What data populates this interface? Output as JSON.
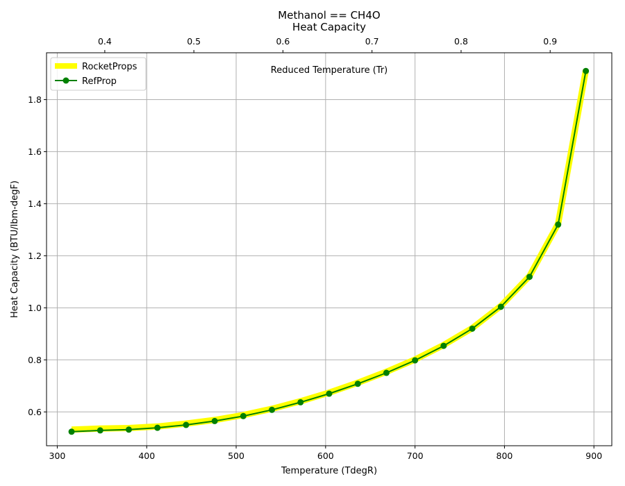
{
  "chart_data": {
    "type": "line",
    "title_line1": "Methanol == CH4O",
    "title_line2": "Heat Capacity",
    "xlabel": "Temperature (TdegR)",
    "ylabel": "Heat Capacity (BTU/lbm-degF)",
    "top_xlabel": "Reduced Temperature (Tr)",
    "xlim": [
      288,
      920
    ],
    "ylim": [
      0.47,
      1.98
    ],
    "top_xlim": [
      0.3346,
      0.9692
    ],
    "x_ticks": [
      "300",
      "400",
      "500",
      "600",
      "700",
      "800",
      "900"
    ],
    "y_ticks": [
      "0.6",
      "0.8",
      "1.0",
      "1.2",
      "1.4",
      "1.6",
      "1.8"
    ],
    "top_x_ticks": [
      "0.4",
      "0.5",
      "0.6",
      "0.7",
      "0.8",
      "0.9"
    ],
    "grid": true,
    "legend_position": "upper-left",
    "series": [
      {
        "name": "RocketProps",
        "color": "#ffff00",
        "style": "thick-line",
        "x": [
          316,
          348,
          380,
          412,
          444,
          476,
          508,
          540,
          572,
          604,
          636,
          668,
          700,
          732,
          764,
          796,
          828,
          860,
          891
        ],
        "y": [
          0.532,
          0.536,
          0.538,
          0.544,
          0.555,
          0.569,
          0.588,
          0.612,
          0.641,
          0.674,
          0.712,
          0.754,
          0.801,
          0.857,
          0.922,
          1.007,
          1.122,
          1.323,
          1.913
        ]
      },
      {
        "name": "RefProp",
        "color": "#008000",
        "style": "line-with-circle-markers",
        "x": [
          316,
          348,
          380,
          412,
          444,
          476,
          508,
          540,
          572,
          604,
          636,
          668,
          700,
          732,
          764,
          796,
          828,
          860,
          891
        ],
        "y": [
          0.524,
          0.529,
          0.532,
          0.539,
          0.55,
          0.565,
          0.584,
          0.608,
          0.637,
          0.67,
          0.708,
          0.75,
          0.798,
          0.854,
          0.92,
          1.004,
          1.119,
          1.32,
          1.91
        ]
      }
    ]
  }
}
